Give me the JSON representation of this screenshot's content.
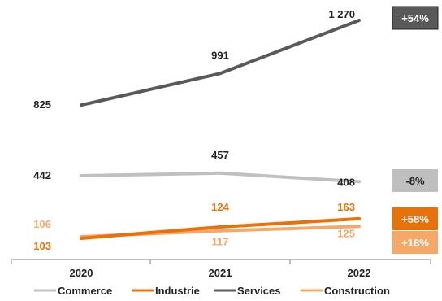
{
  "chart_data": {
    "type": "line",
    "categories": [
      "2020",
      "2021",
      "2022"
    ],
    "series": [
      {
        "name": "Commerce",
        "values": [
          442,
          457,
          408
        ],
        "labels": [
          "442",
          "457",
          "408"
        ],
        "color": "#c0c0c0",
        "label_color": "#222222",
        "badge": "-8%",
        "badge_bg": "#bfbfbf",
        "badge_fg": "#222222"
      },
      {
        "name": "Industrie",
        "values": [
          103,
          124,
          163
        ],
        "labels": [
          "103",
          "124",
          "163"
        ],
        "color": "#e8710a",
        "label_color": "#e8710a",
        "badge": "+58%",
        "badge_bg": "#e8710a",
        "badge_fg": "#ffffff"
      },
      {
        "name": "Services",
        "values": [
          825,
          991,
          1270
        ],
        "labels": [
          "825",
          "991",
          "1 270"
        ],
        "color": "#595959",
        "label_color": "#222222",
        "badge": "+54%",
        "badge_bg": "#595959",
        "badge_fg": "#ffffff"
      },
      {
        "name": "Construction",
        "values": [
          106,
          117,
          125
        ],
        "labels": [
          "106",
          "117",
          "125"
        ],
        "color": "#f5a868",
        "label_color": "#f5a868",
        "badge": "+18%",
        "badge_bg": "#f5a868",
        "badge_fg": "#ffffff"
      }
    ],
    "legend_position": "bottom",
    "grid": false
  }
}
